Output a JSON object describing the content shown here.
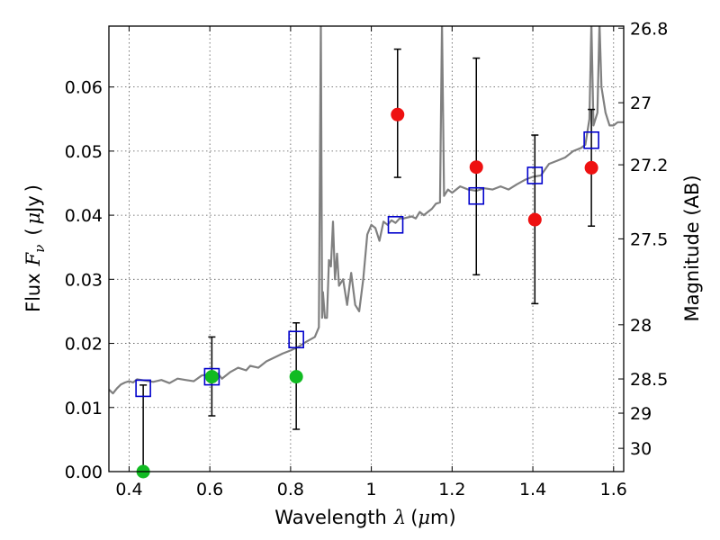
{
  "chart_data": {
    "type": "scatter",
    "title": "",
    "xlabel": {
      "prefix": "Wavelength",
      "symbol": "λ",
      "units_open": "(",
      "units_mu": "μ",
      "units_rest": "m)"
    },
    "ylabel": {
      "prefix": "Flux",
      "symbol": "F",
      "symbol_sub": "ν",
      "units_open": "(",
      "units_mu": "μ",
      "units_rest": "Jy",
      "units_close": ")"
    },
    "y2label": "Magnitude (AB)",
    "xlim": [
      0.35,
      1.625
    ],
    "ylim": [
      0.0,
      0.0695
    ],
    "grid": true,
    "legend": "none",
    "x_ticks": [
      {
        "value": 0.4,
        "label": "0.4"
      },
      {
        "value": 0.6,
        "label": "0.6"
      },
      {
        "value": 0.8,
        "label": "0.8"
      },
      {
        "value": 1.0,
        "label": "1"
      },
      {
        "value": 1.2,
        "label": "1.2"
      },
      {
        "value": 1.4,
        "label": "1.4"
      },
      {
        "value": 1.6,
        "label": "1.6"
      }
    ],
    "y_ticks": [
      {
        "value": 0.0,
        "label": "0.00"
      },
      {
        "value": 0.01,
        "label": "0.01"
      },
      {
        "value": 0.02,
        "label": "0.02"
      },
      {
        "value": 0.03,
        "label": "0.03"
      },
      {
        "value": 0.04,
        "label": "0.04"
      },
      {
        "value": 0.05,
        "label": "0.05"
      },
      {
        "value": 0.06,
        "label": "0.06"
      }
    ],
    "mag_ticks": [
      {
        "mag": 26.8,
        "label": "26.8"
      },
      {
        "mag": 27.0,
        "label": "27"
      },
      {
        "mag": 27.2,
        "label": "27.2"
      },
      {
        "mag": 27.5,
        "label": "27.5"
      },
      {
        "mag": 28.0,
        "label": "28"
      },
      {
        "mag": 28.5,
        "label": "28.5"
      },
      {
        "mag": 29.0,
        "label": "29"
      },
      {
        "mag": 30.0,
        "label": "30"
      }
    ],
    "colors": {
      "template": "#808080",
      "model_box": "#0000cc",
      "red_points": "#ee1111",
      "green_points": "#11bb22",
      "errorbar": "#000000",
      "grid": "#555555"
    },
    "series": [
      {
        "kind": "template_spectrum",
        "points": [
          [
            0.35,
            0.0128
          ],
          [
            0.36,
            0.0122
          ],
          [
            0.37,
            0.013
          ],
          [
            0.38,
            0.0136
          ],
          [
            0.39,
            0.0139
          ],
          [
            0.4,
            0.0141
          ],
          [
            0.41,
            0.0139
          ],
          [
            0.42,
            0.0144
          ],
          [
            0.44,
            0.0142
          ],
          [
            0.46,
            0.014
          ],
          [
            0.48,
            0.0143
          ],
          [
            0.5,
            0.0138
          ],
          [
            0.52,
            0.0145
          ],
          [
            0.54,
            0.0143
          ],
          [
            0.56,
            0.0141
          ],
          [
            0.58,
            0.015
          ],
          [
            0.6,
            0.0152
          ],
          [
            0.62,
            0.0153
          ],
          [
            0.63,
            0.0145
          ],
          [
            0.65,
            0.0155
          ],
          [
            0.67,
            0.0162
          ],
          [
            0.69,
            0.0158
          ],
          [
            0.7,
            0.0165
          ],
          [
            0.72,
            0.0162
          ],
          [
            0.74,
            0.0172
          ],
          [
            0.76,
            0.0178
          ],
          [
            0.78,
            0.0184
          ],
          [
            0.8,
            0.0189
          ],
          [
            0.82,
            0.0195
          ],
          [
            0.84,
            0.0203
          ],
          [
            0.86,
            0.021
          ],
          [
            0.87,
            0.0225
          ],
          [
            0.875,
            0.07
          ],
          [
            0.878,
            0.024
          ],
          [
            0.88,
            0.028
          ],
          [
            0.885,
            0.024
          ],
          [
            0.89,
            0.024
          ],
          [
            0.895,
            0.033
          ],
          [
            0.9,
            0.032
          ],
          [
            0.905,
            0.039
          ],
          [
            0.91,
            0.03
          ],
          [
            0.915,
            0.034
          ],
          [
            0.92,
            0.029
          ],
          [
            0.93,
            0.03
          ],
          [
            0.94,
            0.026
          ],
          [
            0.95,
            0.031
          ],
          [
            0.96,
            0.026
          ],
          [
            0.97,
            0.025
          ],
          [
            0.98,
            0.03
          ],
          [
            0.99,
            0.037
          ],
          [
            1.0,
            0.0385
          ],
          [
            1.01,
            0.038
          ],
          [
            1.02,
            0.036
          ],
          [
            1.03,
            0.039
          ],
          [
            1.04,
            0.0385
          ],
          [
            1.05,
            0.0392
          ],
          [
            1.06,
            0.0388
          ],
          [
            1.07,
            0.0395
          ],
          [
            1.08,
            0.0395
          ],
          [
            1.1,
            0.0398
          ],
          [
            1.11,
            0.0395
          ],
          [
            1.12,
            0.0405
          ],
          [
            1.13,
            0.04
          ],
          [
            1.14,
            0.0405
          ],
          [
            1.15,
            0.041
          ],
          [
            1.16,
            0.0418
          ],
          [
            1.17,
            0.042
          ],
          [
            1.175,
            0.07
          ],
          [
            1.18,
            0.043
          ],
          [
            1.19,
            0.044
          ],
          [
            1.2,
            0.0435
          ],
          [
            1.22,
            0.0445
          ],
          [
            1.24,
            0.044
          ],
          [
            1.26,
            0.0438
          ],
          [
            1.28,
            0.0442
          ],
          [
            1.3,
            0.044
          ],
          [
            1.32,
            0.0445
          ],
          [
            1.34,
            0.044
          ],
          [
            1.36,
            0.0448
          ],
          [
            1.38,
            0.0455
          ],
          [
            1.4,
            0.046
          ],
          [
            1.42,
            0.0462
          ],
          [
            1.44,
            0.048
          ],
          [
            1.46,
            0.0485
          ],
          [
            1.48,
            0.049
          ],
          [
            1.5,
            0.05
          ],
          [
            1.52,
            0.0505
          ],
          [
            1.53,
            0.051
          ],
          [
            1.54,
            0.055
          ],
          [
            1.545,
            0.07
          ],
          [
            1.55,
            0.054
          ],
          [
            1.56,
            0.056
          ],
          [
            1.565,
            0.07
          ],
          [
            1.57,
            0.06
          ],
          [
            1.58,
            0.056
          ],
          [
            1.59,
            0.054
          ],
          [
            1.6,
            0.054
          ],
          [
            1.61,
            0.0545
          ],
          [
            1.625,
            0.0545
          ]
        ]
      },
      {
        "kind": "model_photometry",
        "marker": "open_square",
        "points": [
          [
            0.435,
            0.013
          ],
          [
            0.605,
            0.0148
          ],
          [
            0.814,
            0.0206
          ],
          [
            1.06,
            0.0385
          ],
          [
            1.26,
            0.043
          ],
          [
            1.405,
            0.0462
          ],
          [
            1.545,
            0.0517
          ]
        ]
      },
      {
        "kind": "detections",
        "marker": "red_circle",
        "points": [
          {
            "x": 1.065,
            "y": 0.0557,
            "lo": 0.0459,
            "hi": 0.0659
          },
          {
            "x": 1.26,
            "y": 0.0475,
            "lo": 0.0307,
            "hi": 0.0645
          },
          {
            "x": 1.405,
            "y": 0.0393,
            "lo": 0.0262,
            "hi": 0.0525
          },
          {
            "x": 1.545,
            "y": 0.0474,
            "lo": 0.0383,
            "hi": 0.0565
          }
        ]
      },
      {
        "kind": "low_significance",
        "marker": "green_circle",
        "points": [
          {
            "x": 0.435,
            "y": 0.0,
            "lo": 0.0,
            "hi": 0.0135
          },
          {
            "x": 0.605,
            "y": 0.0148,
            "lo": 0.0087,
            "hi": 0.021
          },
          {
            "x": 0.814,
            "y": 0.0148,
            "lo": 0.0066,
            "hi": 0.0232
          }
        ]
      }
    ]
  }
}
